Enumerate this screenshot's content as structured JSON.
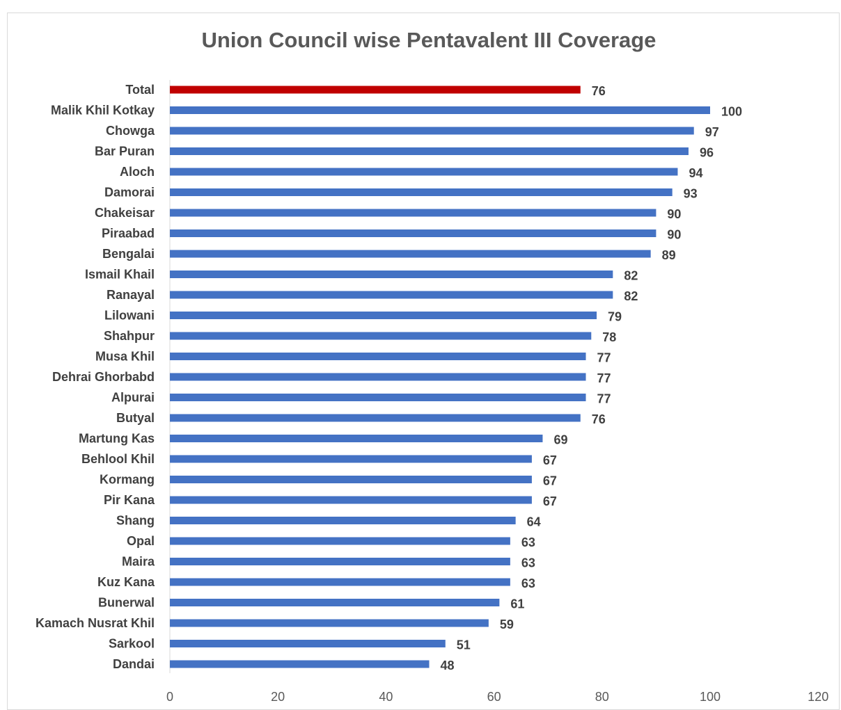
{
  "chart_data": {
    "type": "bar",
    "orientation": "horizontal",
    "title": "Union Council wise Pentavalent III Coverage",
    "xlim": [
      0,
      120
    ],
    "x_ticks": [
      0,
      20,
      40,
      60,
      80,
      100,
      120
    ],
    "grid": false,
    "legend": "none",
    "categories": [
      "Total",
      "Malik Khil Kotkay",
      "Chowga",
      "Bar Puran",
      "Aloch",
      "Damorai",
      "Chakeisar",
      "Piraabad",
      "Bengalai",
      "Ismail Khail",
      "Ranayal",
      "Lilowani",
      "Shahpur",
      "Musa Khil",
      "Dehrai Ghorbabd",
      "Alpurai",
      "Butyal",
      "Martung Kas",
      "Behlool Khil",
      "Kormang",
      "Pir Kana",
      "Shang",
      "Opal",
      "Maira",
      "Kuz Kana",
      "Bunerwal",
      "Kamach Nusrat Khil",
      "Sarkool",
      "Dandai"
    ],
    "values": [
      76,
      100,
      97,
      96,
      94,
      93,
      90,
      90,
      89,
      82,
      82,
      79,
      78,
      77,
      77,
      77,
      76,
      69,
      67,
      67,
      67,
      64,
      63,
      63,
      63,
      61,
      59,
      51,
      48
    ],
    "colors": {
      "highlight": "#c00000",
      "bar": "#4472c4"
    },
    "highlight_category": "Total"
  }
}
